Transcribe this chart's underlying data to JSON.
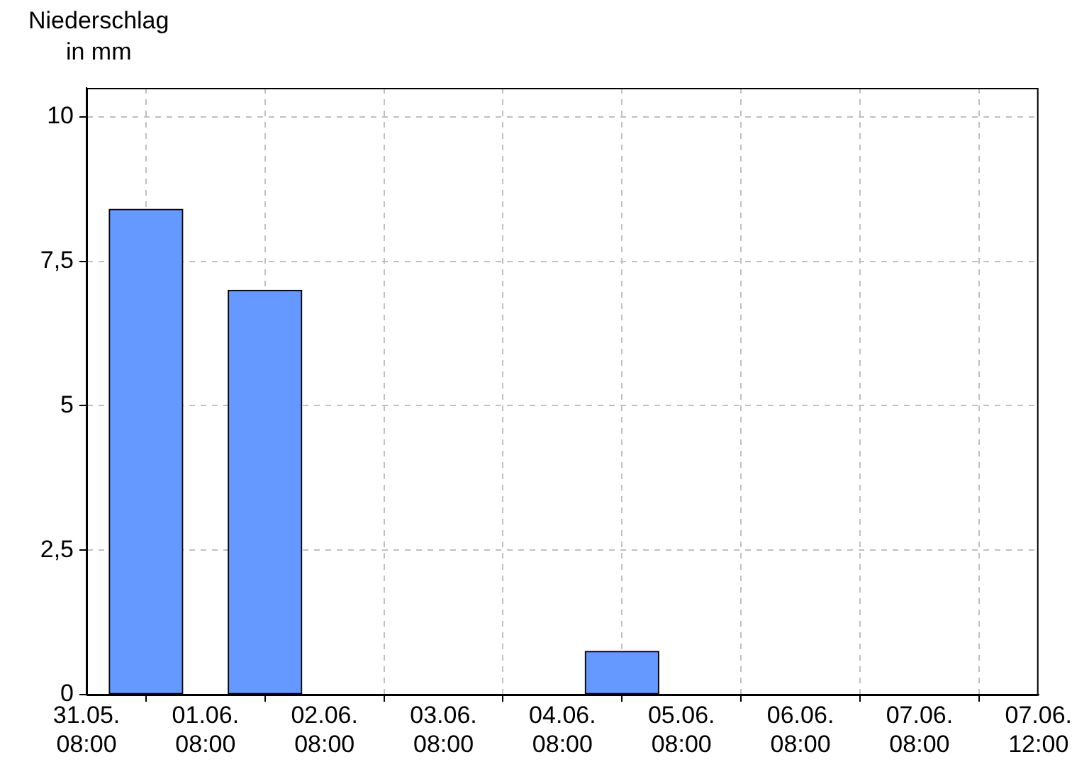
{
  "chart_data": {
    "type": "bar",
    "ylabel": "Niederschlag\nin mm",
    "x": [
      "--05-31T20:00",
      "--06-01T20:00",
      "--06-02T20:00",
      "--06-03T20:00",
      "--06-04T20:00",
      "--06-05T20:00",
      "--06-06T20:00"
    ],
    "values": [
      8.4,
      7.0,
      0,
      0,
      0.75,
      0,
      0
    ],
    "color": "#6699ff",
    "xlim": [
      "--05-31T08:00",
      "--06-08T08:00"
    ],
    "xticks": [
      {
        "value": "--05-31T08:00",
        "label": "31.05.\n08:00"
      },
      {
        "value": "--06-01T08:00",
        "label": "01.06.\n08:00"
      },
      {
        "value": "--06-02T08:00",
        "label": "02.06.\n08:00"
      },
      {
        "value": "--06-03T08:00",
        "label": "03.06.\n08:00"
      },
      {
        "value": "--06-04T08:00",
        "label": "04.06.\n08:00"
      },
      {
        "value": "--06-05T08:00",
        "label": "05.06.\n08:00"
      },
      {
        "value": "--06-06T08:00",
        "label": "06.06.\n08:00"
      },
      {
        "value": "--06-07T08:00",
        "label": "07.06.\n08:00"
      },
      {
        "value": "--06-08T08:00",
        "label": "07.06.\n12:00"
      }
    ],
    "ylim": [
      0,
      10.5
    ],
    "yticks": [
      0,
      {
        "value": 2.5,
        "label": "2,5"
      },
      5,
      {
        "value": 7.5,
        "label": "7,5"
      },
      10
    ],
    "grid": true,
    "legend": false
  }
}
